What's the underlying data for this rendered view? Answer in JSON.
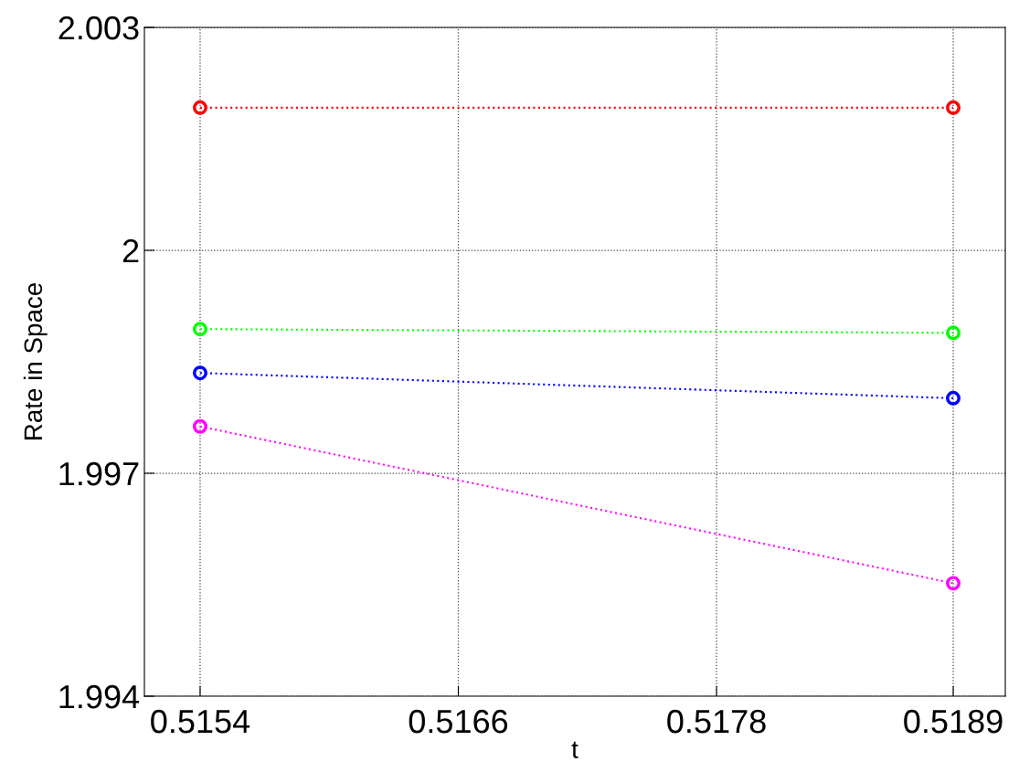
{
  "chart_data": {
    "type": "line",
    "xlabel": "t",
    "ylabel": "Rate in Space",
    "x": [
      0.5154,
      0.5189
    ],
    "series": [
      {
        "color": "#ff0000",
        "values": [
          2.00192,
          2.00192
        ]
      },
      {
        "color": "#00ff00",
        "values": [
          1.99894,
          1.99889
        ]
      },
      {
        "color": "#0000ff",
        "values": [
          1.99835,
          1.99801
        ]
      },
      {
        "color": "#ff00ff",
        "values": [
          1.99763,
          1.99552
        ]
      }
    ],
    "xlim": [
      0.515141,
      0.519142
    ],
    "ylim": [
      1.994,
      2.003
    ],
    "xticks": [
      0.5154,
      0.5166,
      0.5178,
      0.5189
    ],
    "yticks": [
      1.994,
      1.997,
      {
        "value": 2.0,
        "label": "2"
      },
      2.003
    ],
    "grid": true,
    "marker": "circle",
    "line_style": "dotted",
    "legend": false
  }
}
